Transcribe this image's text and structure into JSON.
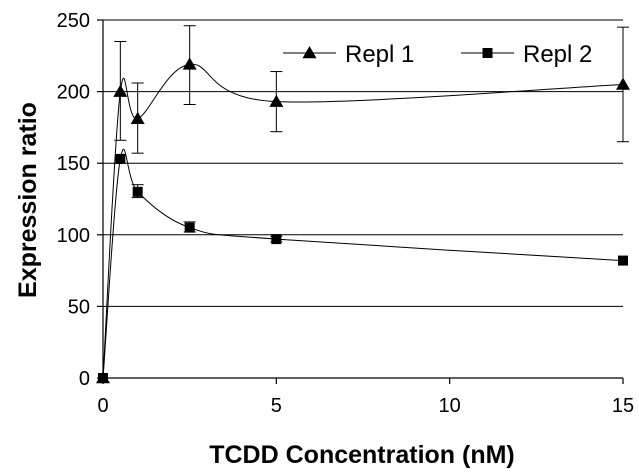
{
  "chart_data": {
    "type": "line",
    "title": "",
    "xlabel": "TCDD Concentration (nM)",
    "ylabel": "Expression ratio",
    "xlim": [
      0,
      15
    ],
    "ylim": [
      0,
      250
    ],
    "x_ticks": [
      0,
      5,
      10,
      15
    ],
    "y_ticks": [
      0,
      50,
      100,
      150,
      200,
      250
    ],
    "grid": "horizontal",
    "legend_position": "top-right",
    "x": [
      0,
      0.5,
      1,
      2.5,
      5,
      15
    ],
    "series": [
      {
        "name": "Repl 1",
        "marker": "triangle",
        "values": [
          0,
          200,
          181,
          219,
          193,
          205
        ],
        "error_low": [
          0,
          166,
          157,
          191,
          172,
          165
        ],
        "error_high": [
          0,
          235,
          206,
          246,
          214,
          245
        ]
      },
      {
        "name": "Repl 2",
        "marker": "square",
        "values": [
          0,
          153,
          130,
          105,
          97,
          82
        ],
        "error_low": [
          0,
          153,
          126,
          102,
          95,
          82
        ],
        "error_high": [
          0,
          153,
          135,
          109,
          99,
          82
        ]
      }
    ]
  }
}
